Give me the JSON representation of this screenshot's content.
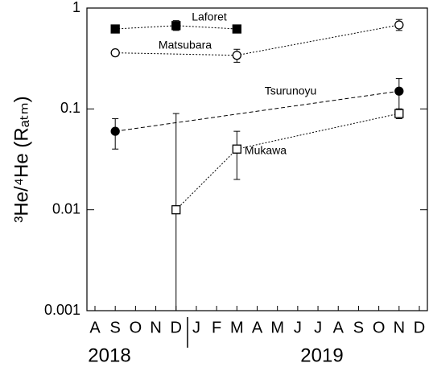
{
  "chart_data": {
    "type": "scatter",
    "ylabel": "³He/⁴He (Rₐₜₘ)",
    "categories": [
      "A",
      "S",
      "O",
      "N",
      "D",
      "J",
      "F",
      "M",
      "A",
      "M",
      "J",
      "J",
      "A",
      "S",
      "O",
      "N",
      "D"
    ],
    "year_labels": [
      "2018",
      "2019"
    ],
    "ylim": [
      0.001,
      1
    ],
    "yticks": [
      0.001,
      0.01,
      0.1,
      1
    ],
    "log_scale": true,
    "series": [
      {
        "name": "Laforet",
        "color": "#000000",
        "marker": "square-filled",
        "line_style": "dotted",
        "values": [
          null,
          0.62,
          null,
          null,
          0.67,
          null,
          null,
          0.62,
          null,
          null,
          null,
          null,
          null,
          null,
          null,
          null,
          null
        ],
        "error_low": [
          null,
          null,
          null,
          null,
          0.6,
          null,
          null,
          null,
          null,
          null,
          null,
          null,
          null,
          null,
          null,
          null,
          null
        ],
        "error_high": [
          null,
          null,
          null,
          null,
          0.75,
          null,
          null,
          null,
          null,
          null,
          null,
          null,
          null,
          null,
          null,
          null,
          null
        ]
      },
      {
        "name": "Matsubara",
        "color": "#000000",
        "marker": "circle-open",
        "line_style": "dotted",
        "values": [
          null,
          0.36,
          null,
          null,
          null,
          null,
          null,
          0.34,
          null,
          null,
          null,
          null,
          null,
          null,
          null,
          0.68,
          null
        ],
        "error_low": [
          null,
          null,
          null,
          null,
          null,
          null,
          null,
          0.29,
          null,
          null,
          null,
          null,
          null,
          null,
          null,
          0.6,
          null
        ],
        "error_high": [
          null,
          null,
          null,
          null,
          null,
          null,
          null,
          0.39,
          null,
          null,
          null,
          null,
          null,
          null,
          null,
          0.77,
          null
        ]
      },
      {
        "name": "Tsurunoyu",
        "color": "#000000",
        "marker": "circle-filled",
        "line_style": "dashed",
        "values": [
          null,
          0.06,
          null,
          null,
          null,
          null,
          null,
          null,
          null,
          null,
          null,
          null,
          null,
          null,
          null,
          0.15,
          null
        ],
        "error_low": [
          null,
          0.04,
          null,
          null,
          null,
          null,
          null,
          null,
          null,
          null,
          null,
          null,
          null,
          null,
          null,
          0.1,
          null
        ],
        "error_high": [
          null,
          0.08,
          null,
          null,
          null,
          null,
          null,
          null,
          null,
          null,
          null,
          null,
          null,
          null,
          null,
          0.2,
          null
        ]
      },
      {
        "name": "Mukawa",
        "color": "#000000",
        "marker": "square-open",
        "line_style": "dotted",
        "values": [
          null,
          null,
          null,
          null,
          0.01,
          null,
          null,
          0.04,
          null,
          null,
          null,
          null,
          null,
          null,
          null,
          0.09,
          null
        ],
        "error_low": [
          null,
          null,
          null,
          null,
          0.001,
          null,
          null,
          0.02,
          null,
          null,
          null,
          null,
          null,
          null,
          null,
          0.08,
          null
        ],
        "error_high": [
          null,
          null,
          null,
          null,
          0.09,
          null,
          null,
          0.06,
          null,
          null,
          null,
          null,
          null,
          null,
          null,
          0.1,
          null
        ]
      }
    ]
  }
}
